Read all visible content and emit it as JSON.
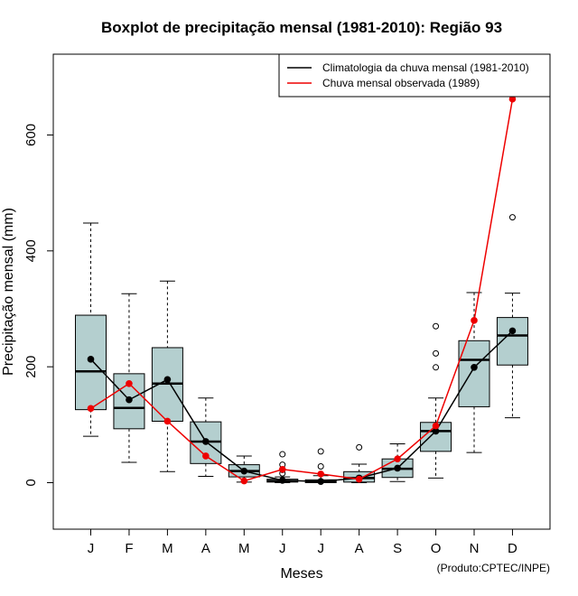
{
  "chart_data": {
    "type": "boxplot",
    "title": "Boxplot de precipitação mensal (1981-2010): Região 93",
    "xlabel": "Meses",
    "ylabel": "Precipitação mensal (mm)",
    "ylim": [
      -80,
      730
    ],
    "yticks": [
      0,
      200,
      400,
      600
    ],
    "categories": [
      "J",
      "F",
      "M",
      "A",
      "M",
      "J",
      "J",
      "A",
      "S",
      "O",
      "N",
      "D"
    ],
    "boxes": [
      {
        "whisker_low": 80,
        "q1": 126,
        "median": 192,
        "q3": 289,
        "whisker_high": 448,
        "outliers": []
      },
      {
        "whisker_low": 35,
        "q1": 93,
        "median": 129,
        "q3": 188,
        "whisker_high": 326,
        "outliers": []
      },
      {
        "whisker_low": 19,
        "q1": 106,
        "median": 171,
        "q3": 233,
        "whisker_high": 348,
        "outliers": []
      },
      {
        "whisker_low": 11,
        "q1": 33,
        "median": 71,
        "q3": 105,
        "whisker_high": 146,
        "outliers": []
      },
      {
        "whisker_low": 1,
        "q1": 10,
        "median": 20,
        "q3": 31,
        "whisker_high": 46,
        "outliers": []
      },
      {
        "whisker_low": 0,
        "q1": 1,
        "median": 3,
        "q3": 6,
        "whisker_high": 10,
        "outliers": [
          16,
          22,
          31,
          49
        ]
      },
      {
        "whisker_low": 0,
        "q1": 0,
        "median": 2,
        "q3": 5,
        "whisker_high": 12,
        "outliers": [
          28,
          54
        ]
      },
      {
        "whisker_low": 0,
        "q1": 1,
        "median": 8,
        "q3": 19,
        "whisker_high": 32,
        "outliers": [
          61
        ]
      },
      {
        "whisker_low": 2,
        "q1": 9,
        "median": 24,
        "q3": 41,
        "whisker_high": 67,
        "outliers": []
      },
      {
        "whisker_low": 8,
        "q1": 54,
        "median": 89,
        "q3": 104,
        "whisker_high": 146,
        "outliers": [
          199,
          223,
          270
        ]
      },
      {
        "whisker_low": 52,
        "q1": 131,
        "median": 212,
        "q3": 245,
        "whisker_high": 328,
        "outliers": []
      },
      {
        "whisker_low": 112,
        "q1": 203,
        "median": 254,
        "q3": 285,
        "whisker_high": 327,
        "outliers": [
          458
        ]
      }
    ],
    "series": [
      {
        "name": "Climatologia da chuva mensal (1981-2010)",
        "color": "#000000",
        "values": [
          213,
          143,
          178,
          71,
          20,
          4,
          2,
          8,
          25,
          89,
          199,
          262
        ]
      },
      {
        "name": "Chuva mensal observada (1989)",
        "color": "#ee0000",
        "values": [
          128,
          171,
          106,
          46,
          3,
          23,
          15,
          6,
          41,
          98,
          280,
          662
        ]
      }
    ],
    "box_color": "#b4cfcf",
    "legend_position": "top-right",
    "credit": "(Produto:CPTEC/INPE)"
  }
}
